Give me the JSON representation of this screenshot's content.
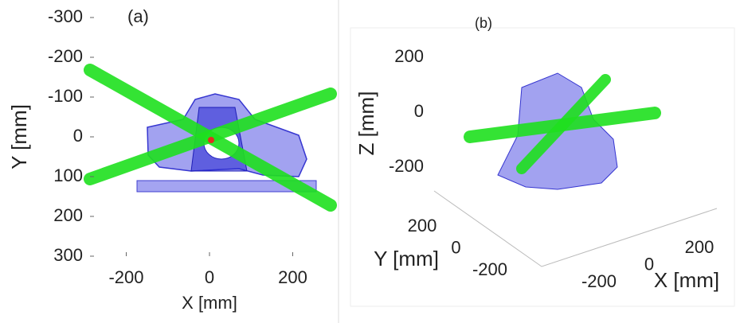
{
  "panels": [
    {
      "label": "(a)",
      "x_label": "X [mm]",
      "y_label": "Y [mm]",
      "x_ticks": [
        -200,
        0,
        200
      ],
      "y_ticks": [
        -300,
        -200,
        -100,
        0,
        100,
        200,
        300
      ]
    },
    {
      "label": "(b)",
      "x_label": "X [mm]",
      "y_label": "Y [mm]",
      "z_label": "Z [mm]",
      "x_ticks": [
        -200,
        0,
        200
      ],
      "y_ticks": [
        200,
        0,
        -200
      ],
      "z_ticks": [
        200,
        0,
        -200
      ]
    }
  ]
}
